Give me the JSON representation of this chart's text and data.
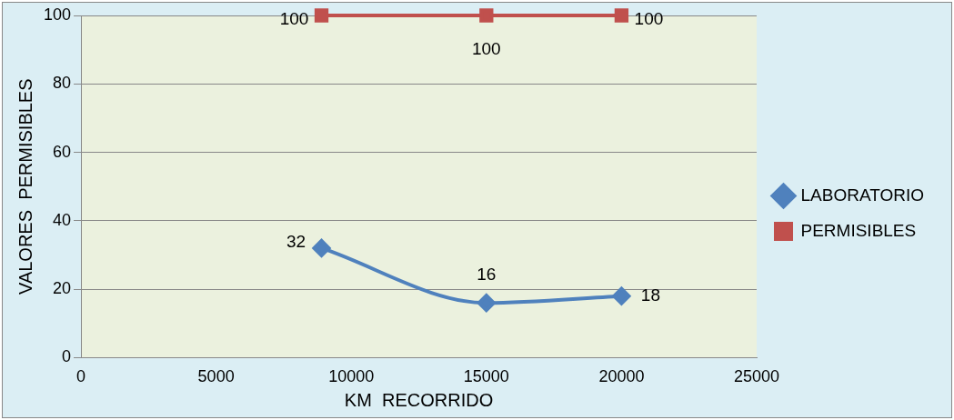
{
  "chart_data": {
    "type": "line",
    "xlabel": "KM  RECORRIDO",
    "ylabel": "VALORES  PERMISIBLES",
    "x": [
      8900,
      15000,
      20000
    ],
    "series": [
      {
        "name": "LABORATORIO",
        "color": "#4f81bd",
        "values": [
          32,
          16,
          18
        ],
        "marker": "diamond"
      },
      {
        "name": "PERMISIBLES",
        "color": "#c0504d",
        "values": [
          100,
          100,
          100
        ],
        "marker": "square"
      }
    ],
    "xlim": [
      0,
      25000
    ],
    "xticks": [
      0,
      5000,
      10000,
      15000,
      20000,
      25000
    ],
    "ylim": [
      0,
      100
    ],
    "yticks": [
      0,
      20,
      40,
      60,
      80,
      100
    ],
    "grid": "y",
    "legend": "right",
    "data_labels": true
  }
}
